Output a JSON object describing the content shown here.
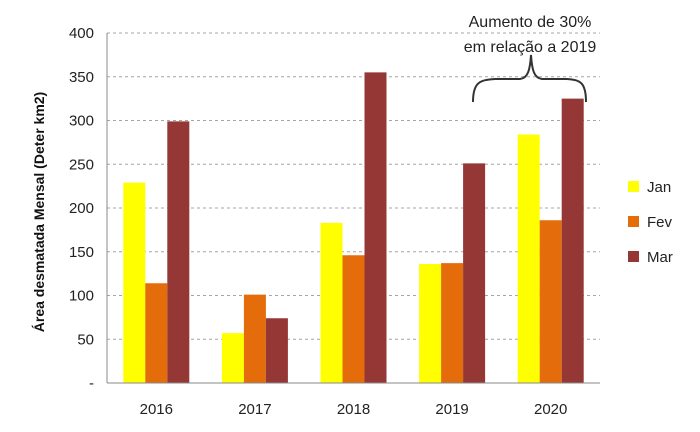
{
  "chart_data": {
    "type": "bar",
    "title": "",
    "xlabel": "",
    "ylabel": "Área desmatada  Mensal (Deter km2)",
    "categories": [
      "2016",
      "2017",
      "2018",
      "2019",
      "2020"
    ],
    "series": [
      {
        "name": "Jan",
        "color": "#ffff00",
        "values": [
          229,
          57,
          183,
          136,
          284
        ]
      },
      {
        "name": "Fev",
        "color": "#e46c0a",
        "values": [
          114,
          101,
          146,
          137,
          186
        ]
      },
      {
        "name": "Mar",
        "color": "#953735",
        "values": [
          299,
          74,
          355,
          251,
          325
        ]
      }
    ],
    "ylim": [
      0,
      400
    ],
    "yticks": [
      0,
      50,
      100,
      150,
      200,
      250,
      300,
      350,
      400
    ],
    "ytick_labels": [
      "-",
      "50",
      "100",
      "150",
      "200",
      "250",
      "300",
      "350",
      "400"
    ],
    "grid": true,
    "legend_position": "right",
    "annotation": {
      "line1": "Aumento de 30%",
      "line2": "em relação a 2019"
    }
  }
}
